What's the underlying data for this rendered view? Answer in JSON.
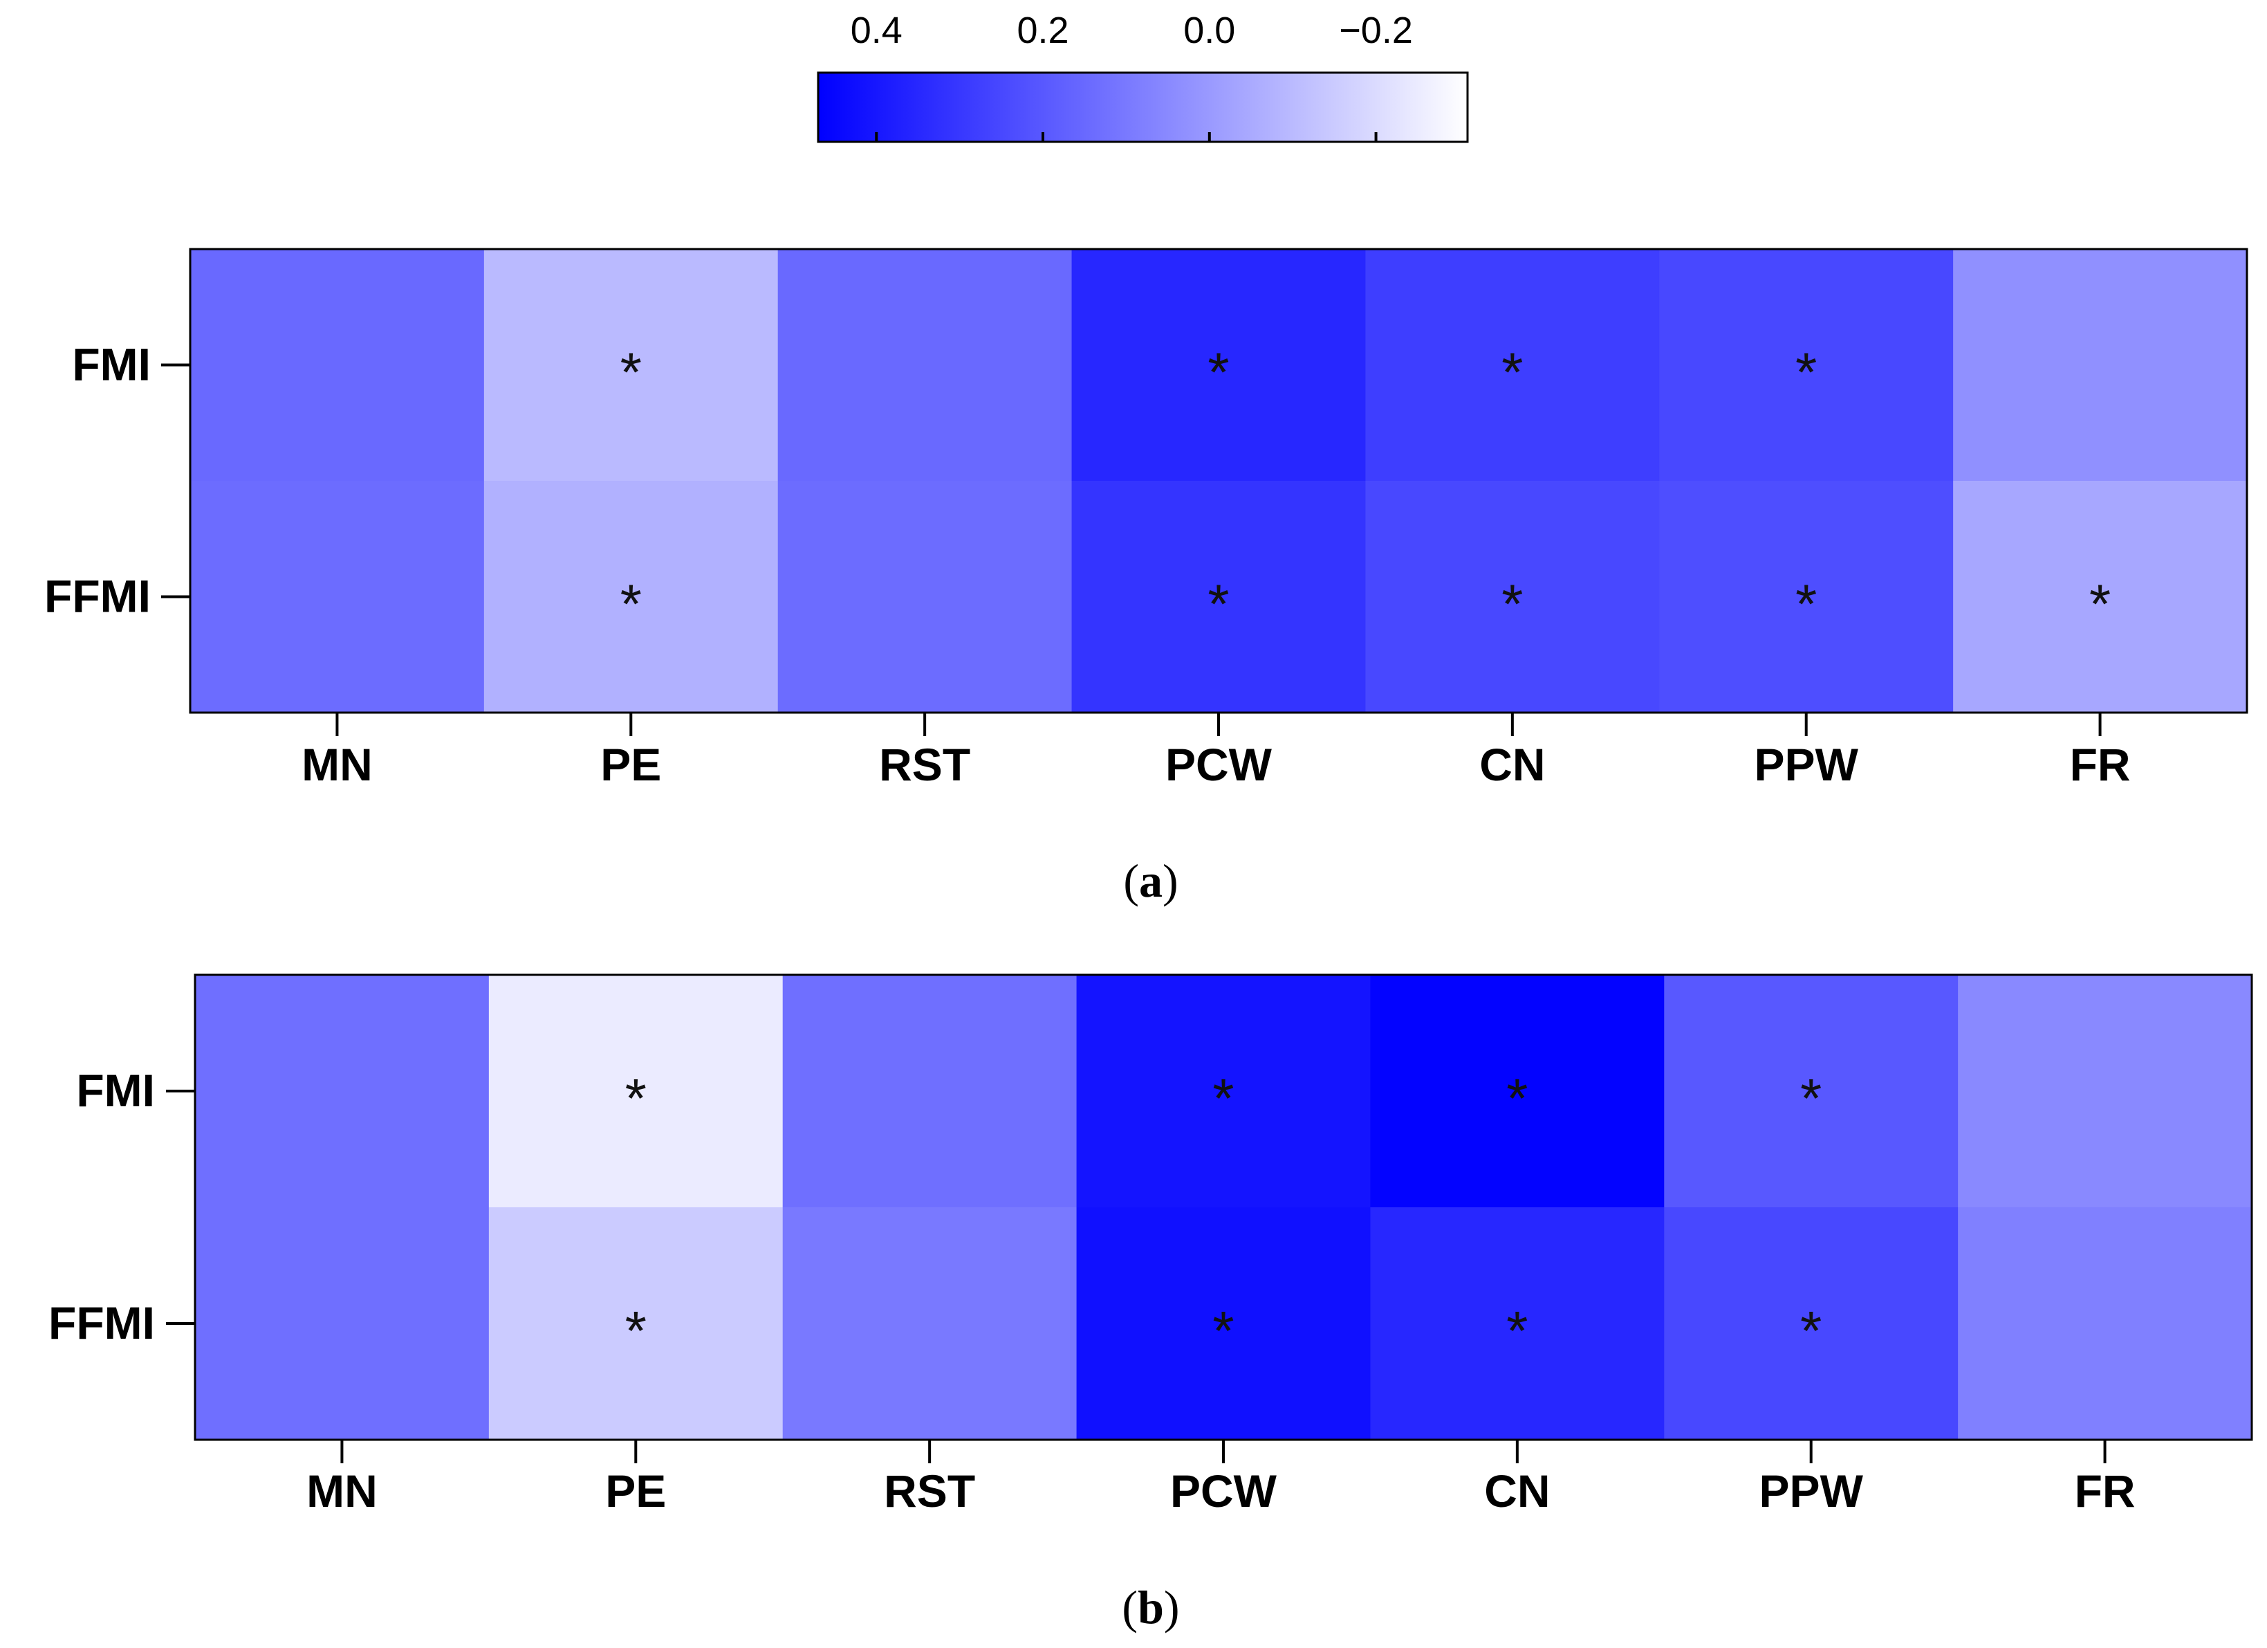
{
  "chart_data": [
    {
      "type": "heatmap",
      "panel": "a",
      "panel_label_letter": "a",
      "rows": [
        "FMI",
        "FFMI"
      ],
      "columns": [
        "MN",
        "PE",
        "RST",
        "PCW",
        "CN",
        "PPW",
        "FR"
      ],
      "values": [
        [
          0.15,
          -0.1,
          0.15,
          0.35,
          0.28,
          0.25,
          0.03
        ],
        [
          0.14,
          -0.07,
          0.14,
          0.31,
          0.25,
          0.23,
          -0.04
        ]
      ],
      "significant": [
        [
          false,
          true,
          false,
          true,
          true,
          true,
          false
        ],
        [
          false,
          true,
          false,
          true,
          true,
          true,
          true
        ]
      ],
      "marker": "*"
    },
    {
      "type": "heatmap",
      "panel": "b",
      "panel_label_letter": "b",
      "rows": [
        "FMI",
        "FFMI"
      ],
      "columns": [
        "MN",
        "PE",
        "RST",
        "PCW",
        "CN",
        "PPW",
        "FR"
      ],
      "values": [
        [
          0.13,
          -0.25,
          0.13,
          0.41,
          0.46,
          0.2,
          0.05
        ],
        [
          0.13,
          -0.15,
          0.1,
          0.42,
          0.35,
          0.25,
          0.08
        ]
      ],
      "significant": [
        [
          false,
          true,
          false,
          true,
          true,
          true,
          false
        ],
        [
          false,
          true,
          false,
          true,
          true,
          true,
          false
        ]
      ],
      "marker": "*"
    }
  ],
  "colorbar": {
    "ticks": [
      0.4,
      0.2,
      0.0,
      -0.2
    ],
    "tick_labels": [
      "0.4",
      "0.2",
      "0.0",
      "−0.2"
    ],
    "range": [
      0.47,
      -0.31
    ],
    "color_high": "#0000ff",
    "color_low": "#ffffff"
  }
}
